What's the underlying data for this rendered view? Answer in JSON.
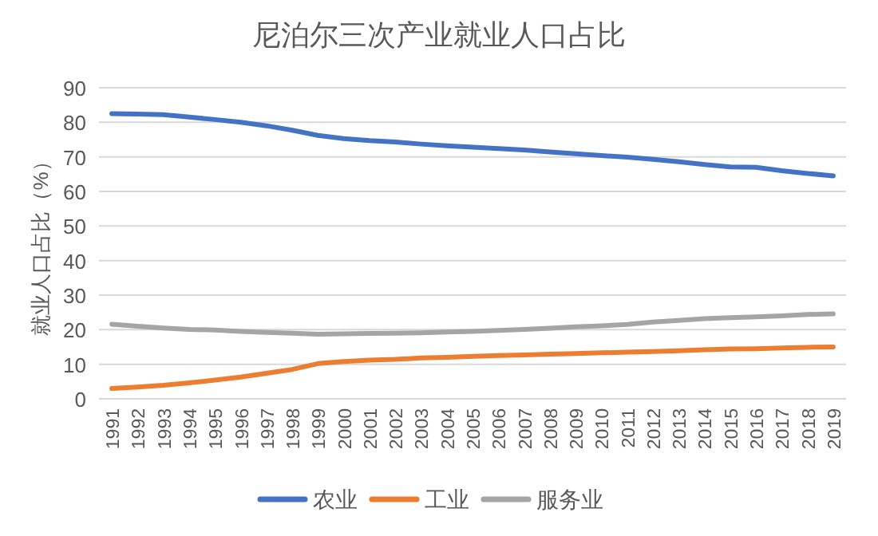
{
  "chart_data": {
    "type": "line",
    "title": "尼泊尔三次产业就业人口占比",
    "ylabel": "就业人口占比（%）",
    "categories": [
      "1991",
      "1992",
      "1993",
      "1994",
      "1995",
      "1996",
      "1997",
      "1998",
      "1999",
      "2000",
      "2001",
      "2002",
      "2003",
      "2004",
      "2005",
      "2006",
      "2007",
      "2008",
      "2009",
      "2010",
      "2011",
      "2012",
      "2013",
      "2014",
      "2015",
      "2016",
      "2017",
      "2018",
      "2019"
    ],
    "series": [
      {
        "name": "农业",
        "color": "#4472c4",
        "values": [
          82.5,
          82.4,
          82.2,
          81.5,
          80.8,
          80.0,
          79.0,
          77.7,
          76.2,
          75.3,
          74.7,
          74.3,
          73.7,
          73.2,
          72.8,
          72.4,
          72.0,
          71.4,
          70.9,
          70.4,
          69.9,
          69.3,
          68.6,
          67.8,
          67.1,
          67.0,
          66.0,
          65.2,
          64.5
        ]
      },
      {
        "name": "工业",
        "color": "#ed7d31",
        "values": [
          3.0,
          3.4,
          3.9,
          4.6,
          5.4,
          6.3,
          7.4,
          8.5,
          10.2,
          10.8,
          11.2,
          11.4,
          11.8,
          12.0,
          12.3,
          12.5,
          12.7,
          12.9,
          13.1,
          13.3,
          13.5,
          13.7,
          13.9,
          14.2,
          14.4,
          14.5,
          14.7,
          14.9,
          15.0
        ]
      },
      {
        "name": "服务业",
        "color": "#a5a5a5",
        "values": [
          21.6,
          21.0,
          20.5,
          20.1,
          19.9,
          19.5,
          19.2,
          19.0,
          18.7,
          18.8,
          18.9,
          19.0,
          19.1,
          19.3,
          19.5,
          19.8,
          20.1,
          20.4,
          20.8,
          21.1,
          21.5,
          22.2,
          22.7,
          23.2,
          23.5,
          23.7,
          24.0,
          24.4,
          24.6
        ]
      }
    ],
    "ylim": [
      0,
      90
    ],
    "yticks": [
      0,
      10,
      20,
      30,
      40,
      50,
      60,
      70,
      80,
      90
    ],
    "grid": "y",
    "legend": "bottom",
    "marker": "none",
    "line_style": "solid"
  }
}
